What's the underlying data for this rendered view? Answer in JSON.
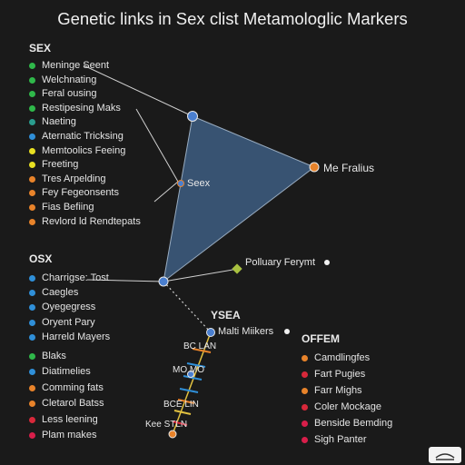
{
  "title": "Genetic links in Sex clist Metamologlic Markers",
  "colors": {
    "green": "#2fb84a",
    "teal": "#2a9d8f",
    "blue": "#2f8fd8",
    "yellow": "#e8e022",
    "orange": "#e8832a",
    "red": "#d8283a",
    "crimson": "#d81e4a",
    "triangle": "#3a5777",
    "node": "#4a7fd0"
  },
  "groups": [
    {
      "title": "SEX",
      "items": [
        {
          "label": "Meninge Seent",
          "color": "#2fb84a"
        },
        {
          "label": "Welchnating",
          "color": "#2fb84a"
        },
        {
          "label": "Feral ousing",
          "color": "#2fb84a"
        },
        {
          "label": "Restipesing Maks",
          "color": "#2fb84a"
        },
        {
          "label": "Naeting",
          "color": "#2a9d8f"
        },
        {
          "label": "Aternatic Tricksing",
          "color": "#2f8fd8"
        },
        {
          "label": "Memtoolics Feeing",
          "color": "#e8e022"
        },
        {
          "label": "Freeting",
          "color": "#e8e022"
        },
        {
          "label": "Tres Arpelding",
          "color": "#e8832a"
        },
        {
          "label": "Fey Fegeonsents",
          "color": "#e8832a"
        },
        {
          "label": "Fias Befiing",
          "color": "#e8832a"
        },
        {
          "label": "Revlord ld Rendtepats",
          "color": "#e8832a"
        }
      ]
    },
    {
      "title": "OSX",
      "items": [
        {
          "label": "Charrigse: Tost",
          "color": "#2f8fd8"
        },
        {
          "label": "Caegles",
          "color": "#2f8fd8"
        },
        {
          "label": "Oyegegress",
          "color": "#2f8fd8"
        },
        {
          "label": "Oryent Pary",
          "color": "#2f8fd8"
        },
        {
          "label": "Harreld Mayers",
          "color": "#2f8fd8"
        }
      ]
    },
    {
      "title": "",
      "items": [
        {
          "label": "Blaks",
          "color": "#2fb84a"
        },
        {
          "label": "Diatimelies",
          "color": "#2f8fd8"
        },
        {
          "label": "Comming fats",
          "color": "#e8832a"
        },
        {
          "label": "Cletarol Batss",
          "color": "#e8832a"
        },
        {
          "label": "Less leening",
          "color": "#d8283a"
        },
        {
          "label": "Plam makes",
          "color": "#d81e4a"
        }
      ]
    },
    {
      "title": "OFFEM",
      "items": [
        {
          "label": "Camdlingfes",
          "color": "#e8832a"
        },
        {
          "label": "Fart Pugies",
          "color": "#d8283a"
        },
        {
          "label": "Farr Mighs",
          "color": "#e8832a"
        },
        {
          "label": "Coler Mockage",
          "color": "#d8283a"
        },
        {
          "label": "Benside Bemding",
          "color": "#d81e4a"
        },
        {
          "label": "Sigh Panter",
          "color": "#d81e4a"
        }
      ]
    }
  ],
  "nodes": {
    "sex": "Seex",
    "fralius": "Me Fralius",
    "polluary": "Polluary Ferymt",
    "ysea": "YSEA",
    "malti": "Malti Miikers",
    "chain": [
      "BC LAN",
      "MO MO",
      "BCE LIN",
      "Kee STLN"
    ]
  }
}
